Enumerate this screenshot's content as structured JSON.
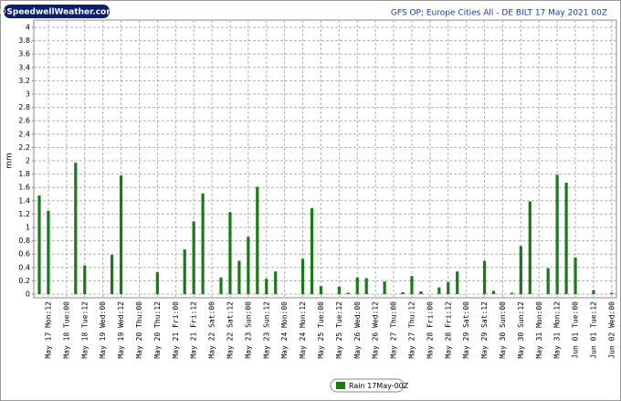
{
  "chart_data": {
    "type": "bar",
    "logo": "©SpeedwellWeather.com",
    "title": "GFS OP; Europe Cities All - DE BILT 17 May 2021 00Z",
    "y_label": "mm",
    "categories": [
      null,
      "May 17 Mon:12",
      null,
      "May 18 Tue:00",
      null,
      "May 18 Tue:12",
      null,
      "May 19 Wed:00",
      null,
      "May 19 Wed:12",
      null,
      "May 20 Thu:00",
      null,
      "May 20 Thu:12",
      null,
      "May 21 Fri:00",
      null,
      "May 21 Fri:12",
      null,
      "May 22 Sat:00",
      null,
      "May 22 Sat:12",
      null,
      "May 23 Sun:00",
      null,
      "May 23 Sun:12",
      null,
      "May 24 Mon:00",
      null,
      "May 24 Mon:12",
      null,
      "May 25 Tue:00",
      null,
      "May 25 Tue:12",
      null,
      "May 26 Wed:00",
      null,
      "May 26 Wed:12",
      null,
      "May 27 Thu:00",
      null,
      "May 27 Thu:12",
      null,
      "May 28 Fri:00",
      null,
      "May 28 Fri:12",
      null,
      "May 29 Sat:00",
      null,
      "May 29 Sat:12",
      null,
      "May 30 Sun:00",
      null,
      "May 30 Sun:12",
      null,
      "May 31 Mon:00",
      null,
      "May 31 Mon:12",
      null,
      "Jun 01 Tue:00",
      null,
      "Jun 01 Tue:12",
      null,
      "Jun 02 Wed:00"
    ],
    "series": [
      {
        "name": "Rain 17May-00Z",
        "color": "#1a7a1a",
        "values": [
          1.48,
          1.25,
          0,
          0,
          1.97,
          0.43,
          0,
          0,
          0.59,
          1.78,
          0,
          0,
          0,
          0.33,
          0,
          0,
          0.67,
          1.09,
          1.51,
          0,
          0.25,
          1.23,
          0.5,
          0.86,
          1.61,
          0.23,
          0.34,
          0,
          0,
          0.53,
          1.29,
          0.12,
          0,
          0.11,
          0.02,
          0.25,
          0.24,
          0,
          0.19,
          0,
          0.03,
          0.27,
          0.04,
          0,
          0.1,
          0.18,
          0.34,
          0,
          0,
          0.5,
          0.05,
          0,
          0.02,
          0.72,
          1.39,
          0,
          0.39,
          1.79,
          1.67,
          0.55,
          0,
          0.06,
          0,
          0.02
        ]
      }
    ],
    "ylim": [
      0,
      4
    ],
    "yticks": [
      0,
      0.2,
      0.4,
      0.6,
      0.8,
      1,
      1.2,
      1.4,
      1.6,
      1.8,
      2,
      2.2,
      2.4,
      2.6,
      2.8,
      3,
      3.2,
      3.4,
      3.6,
      3.8,
      4
    ],
    "grid": true,
    "legend": "bottom"
  }
}
